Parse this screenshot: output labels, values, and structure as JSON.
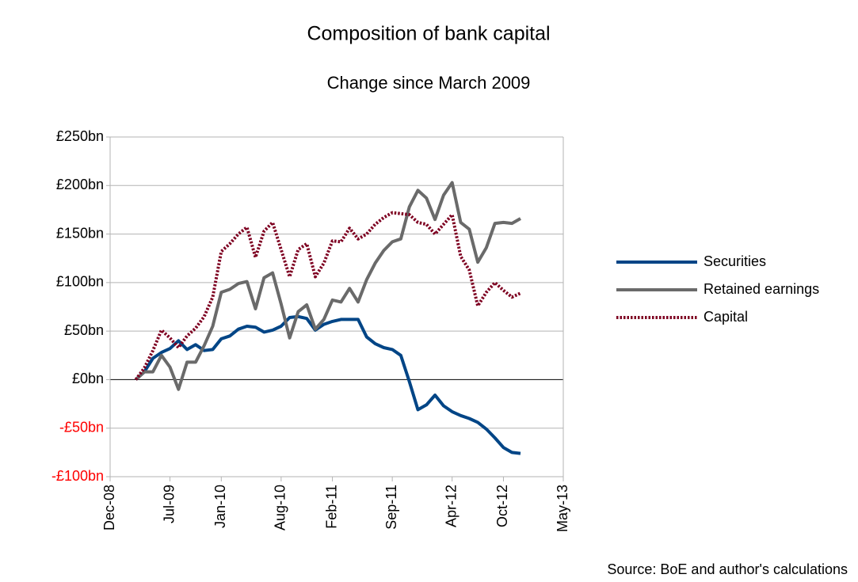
{
  "chart_data": {
    "type": "line",
    "title": "Composition of bank capital",
    "subtitle": "Change since March 2009",
    "source": "Source: BoE and author's calculations",
    "x": [
      "Mar-09",
      "Apr-09",
      "May-09",
      "Jun-09",
      "Jul-09",
      "Aug-09",
      "Sep-09",
      "Oct-09",
      "Nov-09",
      "Dec-09",
      "Jan-10",
      "Feb-10",
      "Mar-10",
      "Apr-10",
      "May-10",
      "Jun-10",
      "Jul-10",
      "Aug-10",
      "Sep-10",
      "Oct-10",
      "Nov-10",
      "Dec-10",
      "Jan-11",
      "Feb-11",
      "Mar-11",
      "Apr-11",
      "May-11",
      "Jun-11",
      "Jul-11",
      "Aug-11",
      "Sep-11",
      "Oct-11",
      "Nov-11",
      "Dec-11",
      "Jan-12",
      "Feb-12",
      "Mar-12",
      "Apr-12",
      "May-12",
      "Jun-12",
      "Jul-12",
      "Aug-12",
      "Sep-12",
      "Oct-12",
      "Nov-12",
      "Dec-12"
    ],
    "series": [
      {
        "name": "Securities",
        "color": "#004586",
        "dash": "solid",
        "values": [
          0,
          8,
          22,
          28,
          32,
          40,
          31,
          36,
          30,
          31,
          42,
          45,
          52,
          55,
          54,
          49,
          51,
          55,
          64,
          65,
          63,
          51,
          57,
          60,
          62,
          62,
          62,
          44,
          37,
          33,
          31,
          25,
          -2,
          -31,
          -26,
          -16,
          -27,
          -33,
          -37,
          -40,
          -44,
          -51,
          -60,
          -70,
          -75,
          -76
        ]
      },
      {
        "name": "Retained earnings",
        "color": "#6a6a6a",
        "dash": "solid",
        "values": [
          0,
          8,
          8,
          25,
          13,
          -10,
          18,
          18,
          35,
          55,
          90,
          93,
          99,
          101,
          73,
          105,
          110,
          78,
          43,
          70,
          77,
          52,
          62,
          82,
          80,
          94,
          80,
          103,
          120,
          133,
          142,
          145,
          178,
          195,
          187,
          165,
          190,
          203,
          162,
          155,
          121,
          136,
          161,
          162,
          161,
          166
        ]
      },
      {
        "name": "Capital",
        "color": "#7e0021",
        "dash": "dotted",
        "values": [
          0,
          12,
          30,
          51,
          43,
          33,
          45,
          53,
          65,
          85,
          132,
          140,
          150,
          157,
          126,
          153,
          162,
          134,
          106,
          134,
          140,
          106,
          120,
          143,
          142,
          156,
          145,
          150,
          160,
          167,
          172,
          171,
          170,
          162,
          160,
          150,
          160,
          170,
          127,
          113,
          76,
          90,
          100,
          92,
          85,
          89
        ]
      }
    ],
    "xlim": [
      "Dec-08",
      "May-13"
    ],
    "xticks": [
      "Dec-08",
      "Jul-09",
      "Jan-10",
      "Aug-10",
      "Feb-11",
      "Sep-11",
      "Apr-12",
      "Oct-12",
      "May-13"
    ],
    "ylim": [
      -100,
      250
    ],
    "yticks": [
      {
        "value": -100,
        "label": "-£100bn"
      },
      {
        "value": -50,
        "label": "-£50bn"
      },
      {
        "value": 0,
        "label": "£0bn"
      },
      {
        "value": 50,
        "label": "£50bn"
      },
      {
        "value": 100,
        "label": "£100bn"
      },
      {
        "value": 150,
        "label": "£150bn"
      },
      {
        "value": 200,
        "label": "£200bn"
      },
      {
        "value": 250,
        "label": "£250bn"
      }
    ],
    "negative_tick_color": "#ff0000",
    "grid": true,
    "legend": "right"
  }
}
